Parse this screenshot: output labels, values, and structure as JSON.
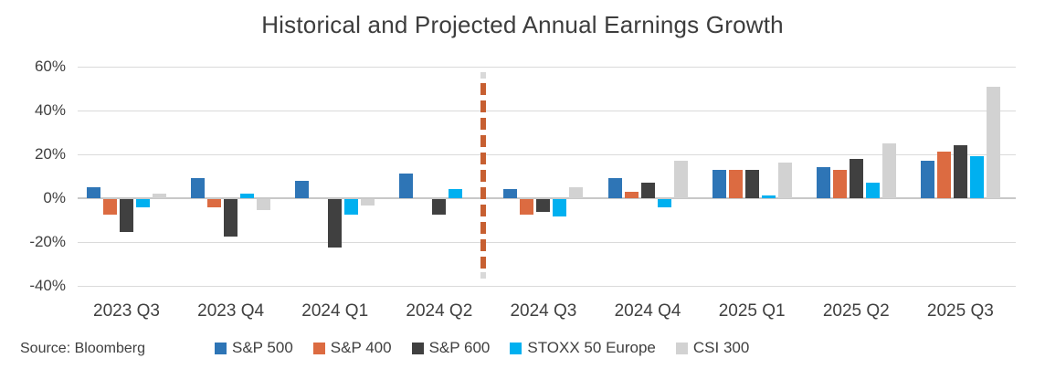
{
  "title": "Historical and Projected Annual Earnings Growth",
  "source_note": "Source: Bloomberg",
  "chart_data": {
    "type": "bar",
    "title": "Historical and Projected Annual Earnings Growth",
    "categories": [
      "2023 Q3",
      "2023 Q4",
      "2024 Q1",
      "2024 Q2",
      "2024 Q3",
      "2024 Q4",
      "2025 Q1",
      "2025 Q2",
      "2025 Q3"
    ],
    "series": [
      {
        "name": "S&P 500",
        "color": "#2E75B6",
        "values": [
          5,
          9,
          8,
          11,
          4,
          9,
          13,
          14,
          17
        ]
      },
      {
        "name": "S&P 400",
        "color": "#DC6B41",
        "values": [
          -7,
          -4,
          0,
          0,
          -7,
          3,
          13,
          13,
          21
        ]
      },
      {
        "name": "S&P 600",
        "color": "#404040",
        "values": [
          -15,
          -17,
          -22,
          -7,
          -6,
          7,
          13,
          18,
          24
        ]
      },
      {
        "name": "STOXX 50 Europe",
        "color": "#00B0F0",
        "values": [
          -4,
          2,
          -7,
          4,
          -8,
          -4,
          1,
          7,
          19
        ]
      },
      {
        "name": "CSI 300",
        "color": "#D2D2D2",
        "values": [
          2,
          -5,
          -3,
          0,
          5,
          17,
          16,
          25,
          51
        ]
      }
    ],
    "ylabel": "",
    "xlabel": "",
    "ylim": [
      -40,
      60
    ],
    "yticks": [
      60,
      40,
      20,
      0,
      -20,
      -40
    ],
    "ytick_suffix": "%",
    "grid": "horizontal",
    "legend_position": "bottom",
    "divider": {
      "after_category": "2024 Q2",
      "style": "dashed-vertical",
      "color": "#C75F31",
      "tip_color": "#D9D9D9"
    }
  },
  "colors": {
    "gridline": "#DADADA",
    "zero_line": "#C8C8C8",
    "text": "#404040",
    "background": "#FFFFFF"
  }
}
